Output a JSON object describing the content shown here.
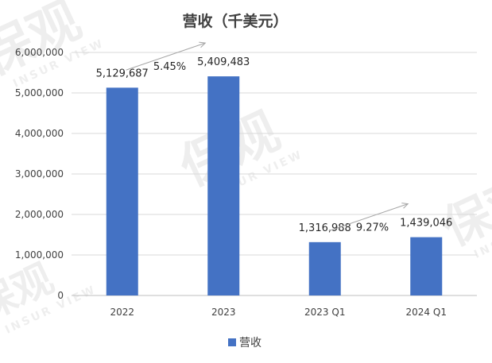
{
  "chart_data": {
    "type": "bar",
    "title": "营收（千美元）",
    "categories": [
      "2022",
      "2023",
      "2023 Q1",
      "2024 Q1"
    ],
    "series": [
      {
        "name": "营收",
        "values": [
          5129687,
          5409483,
          1316988,
          1439046
        ],
        "color": "#4472C4"
      }
    ],
    "data_labels": [
      "5,129,687",
      "5,409,483",
      "1,316,988",
      "1,439,046"
    ],
    "ylim": [
      0,
      6000000
    ],
    "yticks": [
      0,
      1000000,
      2000000,
      3000000,
      4000000,
      5000000,
      6000000
    ],
    "ytick_labels": [
      "0",
      "1,000,000",
      "2,000,000",
      "3,000,000",
      "4,000,000",
      "5,000,000",
      "6,000,000"
    ],
    "grid": true,
    "legend": "bottom",
    "annotations": [
      {
        "text": "5.45%",
        "from": "2022",
        "to": "2023"
      },
      {
        "text": "9.27%",
        "from": "2023 Q1",
        "to": "2024 Q1"
      }
    ]
  },
  "watermark": {
    "text": "保观",
    "subtext": "INSUR VIEW"
  }
}
